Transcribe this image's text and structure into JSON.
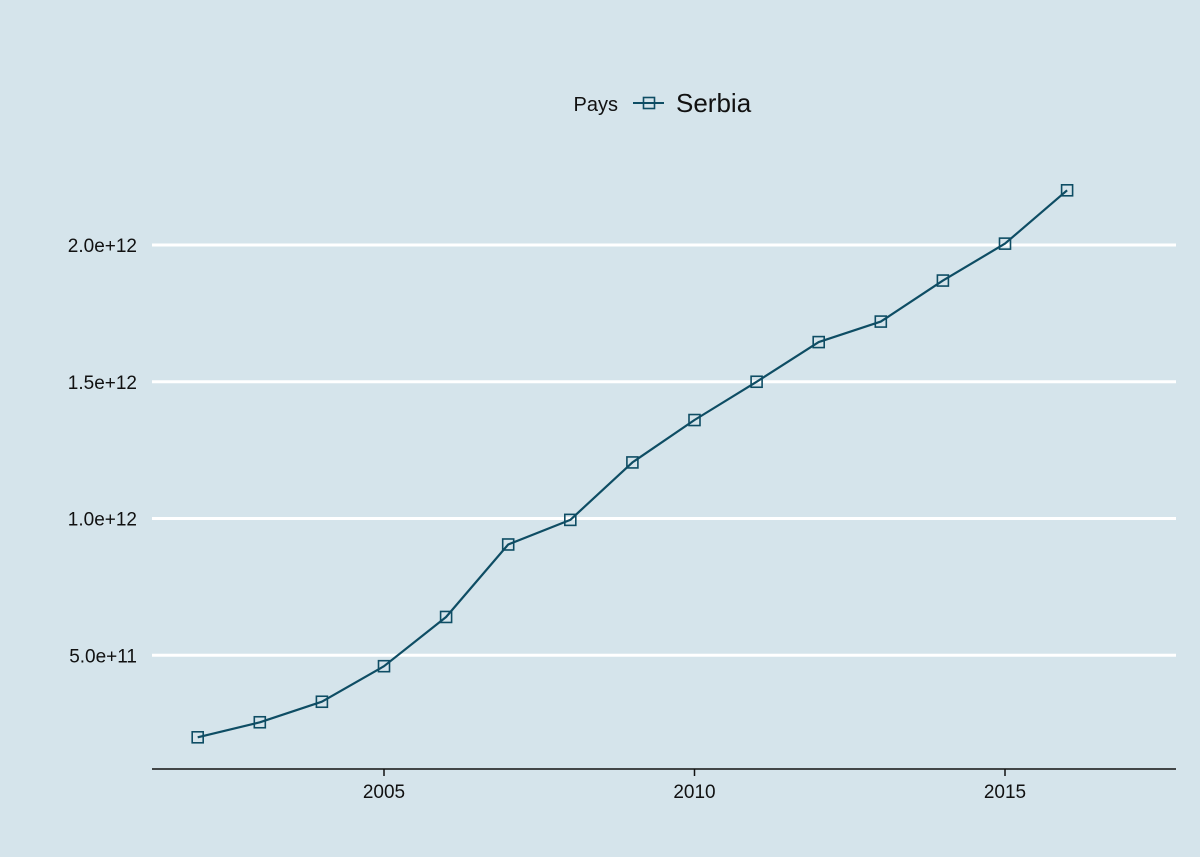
{
  "chart_data": {
    "type": "line",
    "title": "",
    "xlabel": "",
    "ylabel": "",
    "legend": {
      "title": "Pays",
      "position": "top-center"
    },
    "series": [
      {
        "name": "Serbia",
        "color": "#0e4d64",
        "marker": "hollow-square",
        "x": [
          2002,
          2003,
          2004,
          2005,
          2006,
          2007,
          2008,
          2009,
          2010,
          2011,
          2012,
          2013,
          2014,
          2015,
          2016
        ],
        "values": [
          200000000000.0,
          255000000000.0,
          330000000000.0,
          460000000000.0,
          640000000000.0,
          905000000000.0,
          995000000000.0,
          1205000000000.0,
          1360000000000.0,
          1500000000000.0,
          1645000000000.0,
          1720000000000.0,
          1870000000000.0,
          2005000000000.0,
          2200000000000.0
        ]
      }
    ],
    "xlim": [
      1998.25,
      2014.75
    ],
    "ylim": [
      0,
      2800000000000.0
    ],
    "x_ticks": [
      {
        "value": 2005,
        "label": "2005"
      },
      {
        "value": 2010,
        "label": "2010"
      },
      {
        "value": 2015,
        "label": "2015"
      }
    ],
    "y_ticks": [
      {
        "value": 500000000000.0,
        "label": "5.0e+11"
      },
      {
        "value": 1000000000000.0,
        "label": "1.0e+12"
      },
      {
        "value": 1500000000000.0,
        "label": "1.5e+12"
      },
      {
        "value": 2000000000000.0,
        "label": "2.0e+12"
      }
    ],
    "grid": {
      "y": true,
      "x": false,
      "color": "#ffffff"
    },
    "background": "#d5e4eb",
    "axis_color": "#111111"
  }
}
